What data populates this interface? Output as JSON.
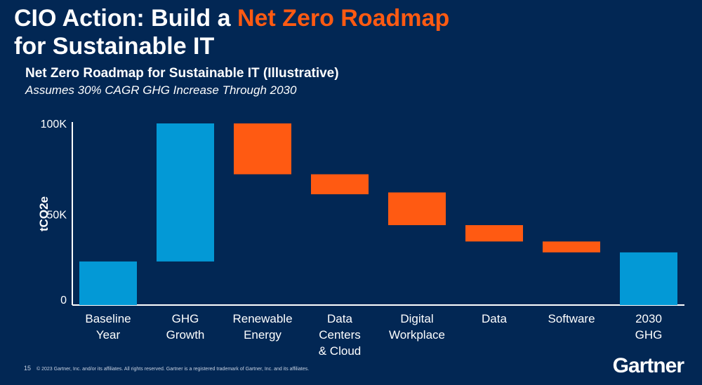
{
  "slide": {
    "title_part1": "CIO Action: Build a ",
    "title_highlight": "Net Zero Roadmap",
    "title_part2": "for Sustainable IT",
    "page_number": "15",
    "copyright": "© 2023 Gartner, Inc. and/or its affiliates. All rights reserved. Gartner is a registered trademark of Gartner, Inc. and its affiliates.",
    "logo": "Gartner"
  },
  "colors": {
    "background": "#022754",
    "total": "#0399d6",
    "reduction": "#ff5a12",
    "highlight": "#ff5a12"
  },
  "chart_data": {
    "type": "bar",
    "subtype": "waterfall",
    "title": "Net Zero Roadmap for Sustainable IT (Illustrative)",
    "subtitle": "Assumes 30% CAGR GHG Increase Through 2030",
    "ylabel": "tCO2e",
    "ylim": [
      0,
      100000
    ],
    "yticks": [
      {
        "v": 0,
        "label": "0"
      },
      {
        "v": 50000,
        "label": "50K"
      },
      {
        "v": 100000,
        "label": "100K"
      }
    ],
    "grid": false,
    "categories": [
      [
        "Baseline",
        "Year"
      ],
      [
        "GHG",
        "Growth"
      ],
      [
        "Renewable",
        "Energy"
      ],
      [
        "Data",
        "Centers",
        "& Cloud"
      ],
      [
        "Digital",
        "Workplace"
      ],
      [
        "Data"
      ],
      [
        "Software"
      ],
      [
        "2030",
        "GHG"
      ]
    ],
    "bars": [
      {
        "start": 0,
        "end": 24000,
        "kind": "total"
      },
      {
        "start": 24000,
        "end": 100000,
        "kind": "total"
      },
      {
        "start": 100000,
        "end": 72000,
        "kind": "reduction"
      },
      {
        "start": 72000,
        "end": 61000,
        "kind": "reduction"
      },
      {
        "start": 62000,
        "end": 44000,
        "kind": "reduction"
      },
      {
        "start": 44000,
        "end": 35000,
        "kind": "reduction"
      },
      {
        "start": 35000,
        "end": 29000,
        "kind": "reduction"
      },
      {
        "start": 0,
        "end": 29000,
        "kind": "total"
      }
    ]
  }
}
